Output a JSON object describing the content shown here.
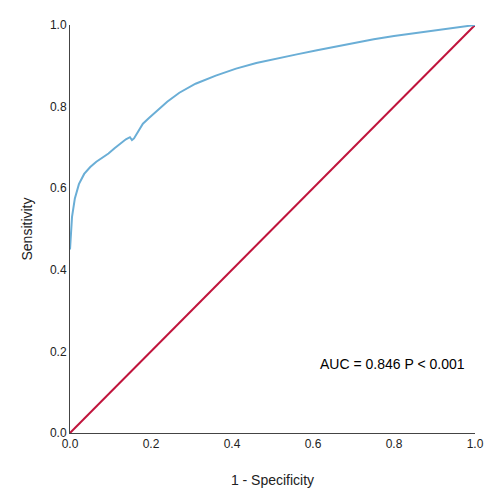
{
  "chart_data": {
    "type": "line",
    "xlabel": "1 - Specificity",
    "ylabel": "Sensitivity",
    "xlim": [
      0.0,
      1.0
    ],
    "ylim": [
      0.0,
      1.0
    ],
    "xticks": [
      {
        "value": 0.0,
        "label": "0.0"
      },
      0.2,
      0.4,
      0.6,
      0.8,
      {
        "value": 1.0,
        "label": "1.0"
      }
    ],
    "yticks": [
      {
        "value": 0.0,
        "label": "0.0"
      },
      0.2,
      0.4,
      0.6,
      0.8,
      {
        "value": 1.0,
        "label": "1.0"
      }
    ],
    "grid": false,
    "annotation": "AUC = 0.846 P < 0.001",
    "series": [
      {
        "color": "#c0143c",
        "x": [
          0,
          1
        ],
        "values": [
          0,
          1
        ]
      },
      {
        "color": "#6aaed6",
        "x": [
          0.0,
          0.0,
          0.005,
          0.012,
          0.022,
          0.035,
          0.05,
          0.065,
          0.08,
          0.095,
          0.11,
          0.125,
          0.138,
          0.148,
          0.153,
          0.158,
          0.163,
          0.168,
          0.18,
          0.195,
          0.215,
          0.24,
          0.27,
          0.31,
          0.36,
          0.41,
          0.46,
          0.51,
          0.56,
          0.61,
          0.65,
          0.7,
          0.75,
          0.8,
          0.85,
          0.9,
          0.95,
          1.0
        ],
        "values": [
          0.45,
          0.45,
          0.53,
          0.575,
          0.61,
          0.635,
          0.652,
          0.665,
          0.675,
          0.685,
          0.698,
          0.71,
          0.72,
          0.725,
          0.718,
          0.722,
          0.73,
          0.74,
          0.758,
          0.772,
          0.79,
          0.812,
          0.834,
          0.856,
          0.876,
          0.893,
          0.907,
          0.918,
          0.928,
          0.938,
          0.946,
          0.956,
          0.965,
          0.973,
          0.98,
          0.987,
          0.993,
          1.0
        ]
      }
    ]
  }
}
